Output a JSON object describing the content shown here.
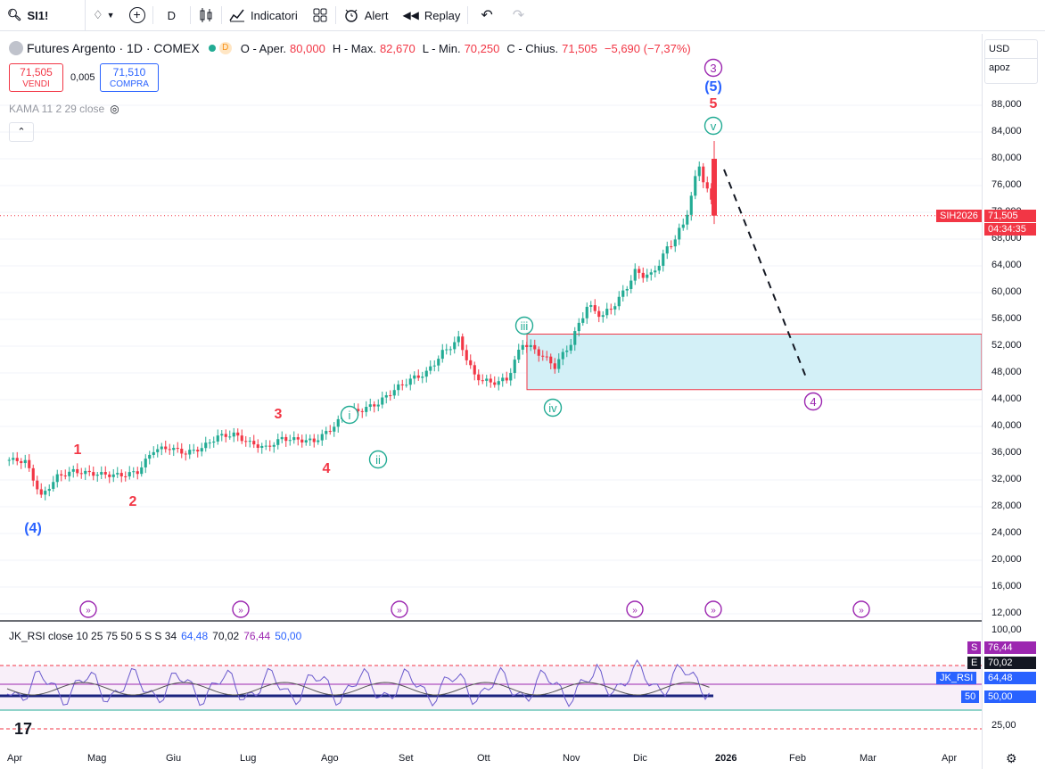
{
  "toolbar": {
    "symbol": "SI1!",
    "interval": "D",
    "indicators_label": "Indicatori",
    "alert_label": "Alert",
    "replay_label": "Replay"
  },
  "legend": {
    "title": "Futures Argento · 1D · COMEX",
    "exchange_badge": "D",
    "o_label": "O - Aper.",
    "o_val": "80,000",
    "h_label": "H - Max.",
    "h_val": "82,670",
    "l_label": "L - Min.",
    "l_val": "70,250",
    "c_label": "C - Chius.",
    "c_val": "71,505",
    "change": "−5,690 (−7,37%)"
  },
  "trade": {
    "sell_price": "71,505",
    "sell_label": "VENDI",
    "spread": "0,005",
    "buy_price": "71,510",
    "buy_label": "COMPRA"
  },
  "kama_label": "KAMA 11 2 29 close",
  "rsi_legend": {
    "name": "JK_RSI close 10 25 75 50 5 S S 34",
    "v1": "64,48",
    "v2": "70,02",
    "v3": "76,44",
    "v4": "50,00"
  },
  "right_axis": {
    "currency": "USD",
    "mode": "apoz",
    "ticks": [
      "88,000",
      "84,000",
      "80,000",
      "76,000",
      "72,000",
      "68,000",
      "64,000",
      "60,000",
      "56,000",
      "52,000",
      "48,000",
      "44,000",
      "40,000",
      "36,000",
      "32,000",
      "28,000",
      "24,000",
      "20,000",
      "16,000",
      "12,000"
    ],
    "rsi_ticks": [
      "100,00",
      "25,00"
    ],
    "symbol_tag": "SIH2026",
    "last_price": "71,505",
    "countdown": "04:34:35",
    "rsi_tags": [
      {
        "label": "S",
        "value": "76,44",
        "color": "#9c27b0"
      },
      {
        "label": "E",
        "value": "70,02",
        "color": "#131722"
      },
      {
        "label": "JK_RSI",
        "value": "64,48",
        "color": "#2962ff"
      },
      {
        "label": "50",
        "value": "50,00",
        "color": "#2962ff"
      }
    ]
  },
  "x_axis": [
    "Apr",
    "Mag",
    "Giu",
    "Lug",
    "Ago",
    "Set",
    "Ott",
    "Nov",
    "Dic",
    "2026",
    "Feb",
    "Mar",
    "Apr"
  ],
  "wave_labels": [
    {
      "text": "(4)",
      "color": "#2962ff"
    },
    {
      "text": "1",
      "color": "#f23645"
    },
    {
      "text": "2",
      "color": "#f23645"
    },
    {
      "text": "3",
      "color": "#f23645"
    },
    {
      "text": "4",
      "color": "#f23645"
    },
    {
      "text": "i",
      "color": "#22ab94"
    },
    {
      "text": "ii",
      "color": "#22ab94"
    },
    {
      "text": "iii",
      "color": "#22ab94"
    },
    {
      "text": "iv",
      "color": "#22ab94"
    },
    {
      "text": "v",
      "color": "#22ab94"
    },
    {
      "text": "5",
      "color": "#f23645"
    },
    {
      "text": "(5)",
      "color": "#2962ff"
    },
    {
      "text": "3",
      "color": "#9c27b0"
    },
    {
      "text": "4",
      "color": "#9c27b0"
    }
  ],
  "colors": {
    "up": "#22ab94",
    "down": "#f23645",
    "zone_fill": "#d3f0f7",
    "zone_border": "#f23645",
    "rsi_line": "#6a5acd",
    "accent": "#2962ff"
  },
  "chart_data": {
    "type": "candlestick",
    "title": "Futures Argento · 1D · COMEX",
    "x": [
      "Apr",
      "Mag",
      "Giu",
      "Lug",
      "Ago",
      "Set",
      "Ott",
      "Nov",
      "Dic",
      "2026"
    ],
    "close_path": [
      35.0,
      34.8,
      29.5,
      32.5,
      33.3,
      33.0,
      32.8,
      32.7,
      33.2,
      36.5,
      36.8,
      36.0,
      36.8,
      38.5,
      38.8,
      37.5,
      36.8,
      38.2,
      38.0,
      37.8,
      39.5,
      42.0,
      42.5,
      43.5,
      45.5,
      47.0,
      48.0,
      51.0,
      53.0,
      47.5,
      46.5,
      47.0,
      52.5,
      51.0,
      49.0,
      52.5,
      58.0,
      56.5,
      59.0,
      63.0,
      62.5,
      66.5,
      70.0,
      79.0,
      71.5
    ],
    "ohlc_last": {
      "open": 80.0,
      "high": 82.67,
      "low": 70.25,
      "close": 71.505
    },
    "ylim": [
      12,
      90
    ],
    "zone": {
      "low": 45.5,
      "high": 53.8
    }
  }
}
